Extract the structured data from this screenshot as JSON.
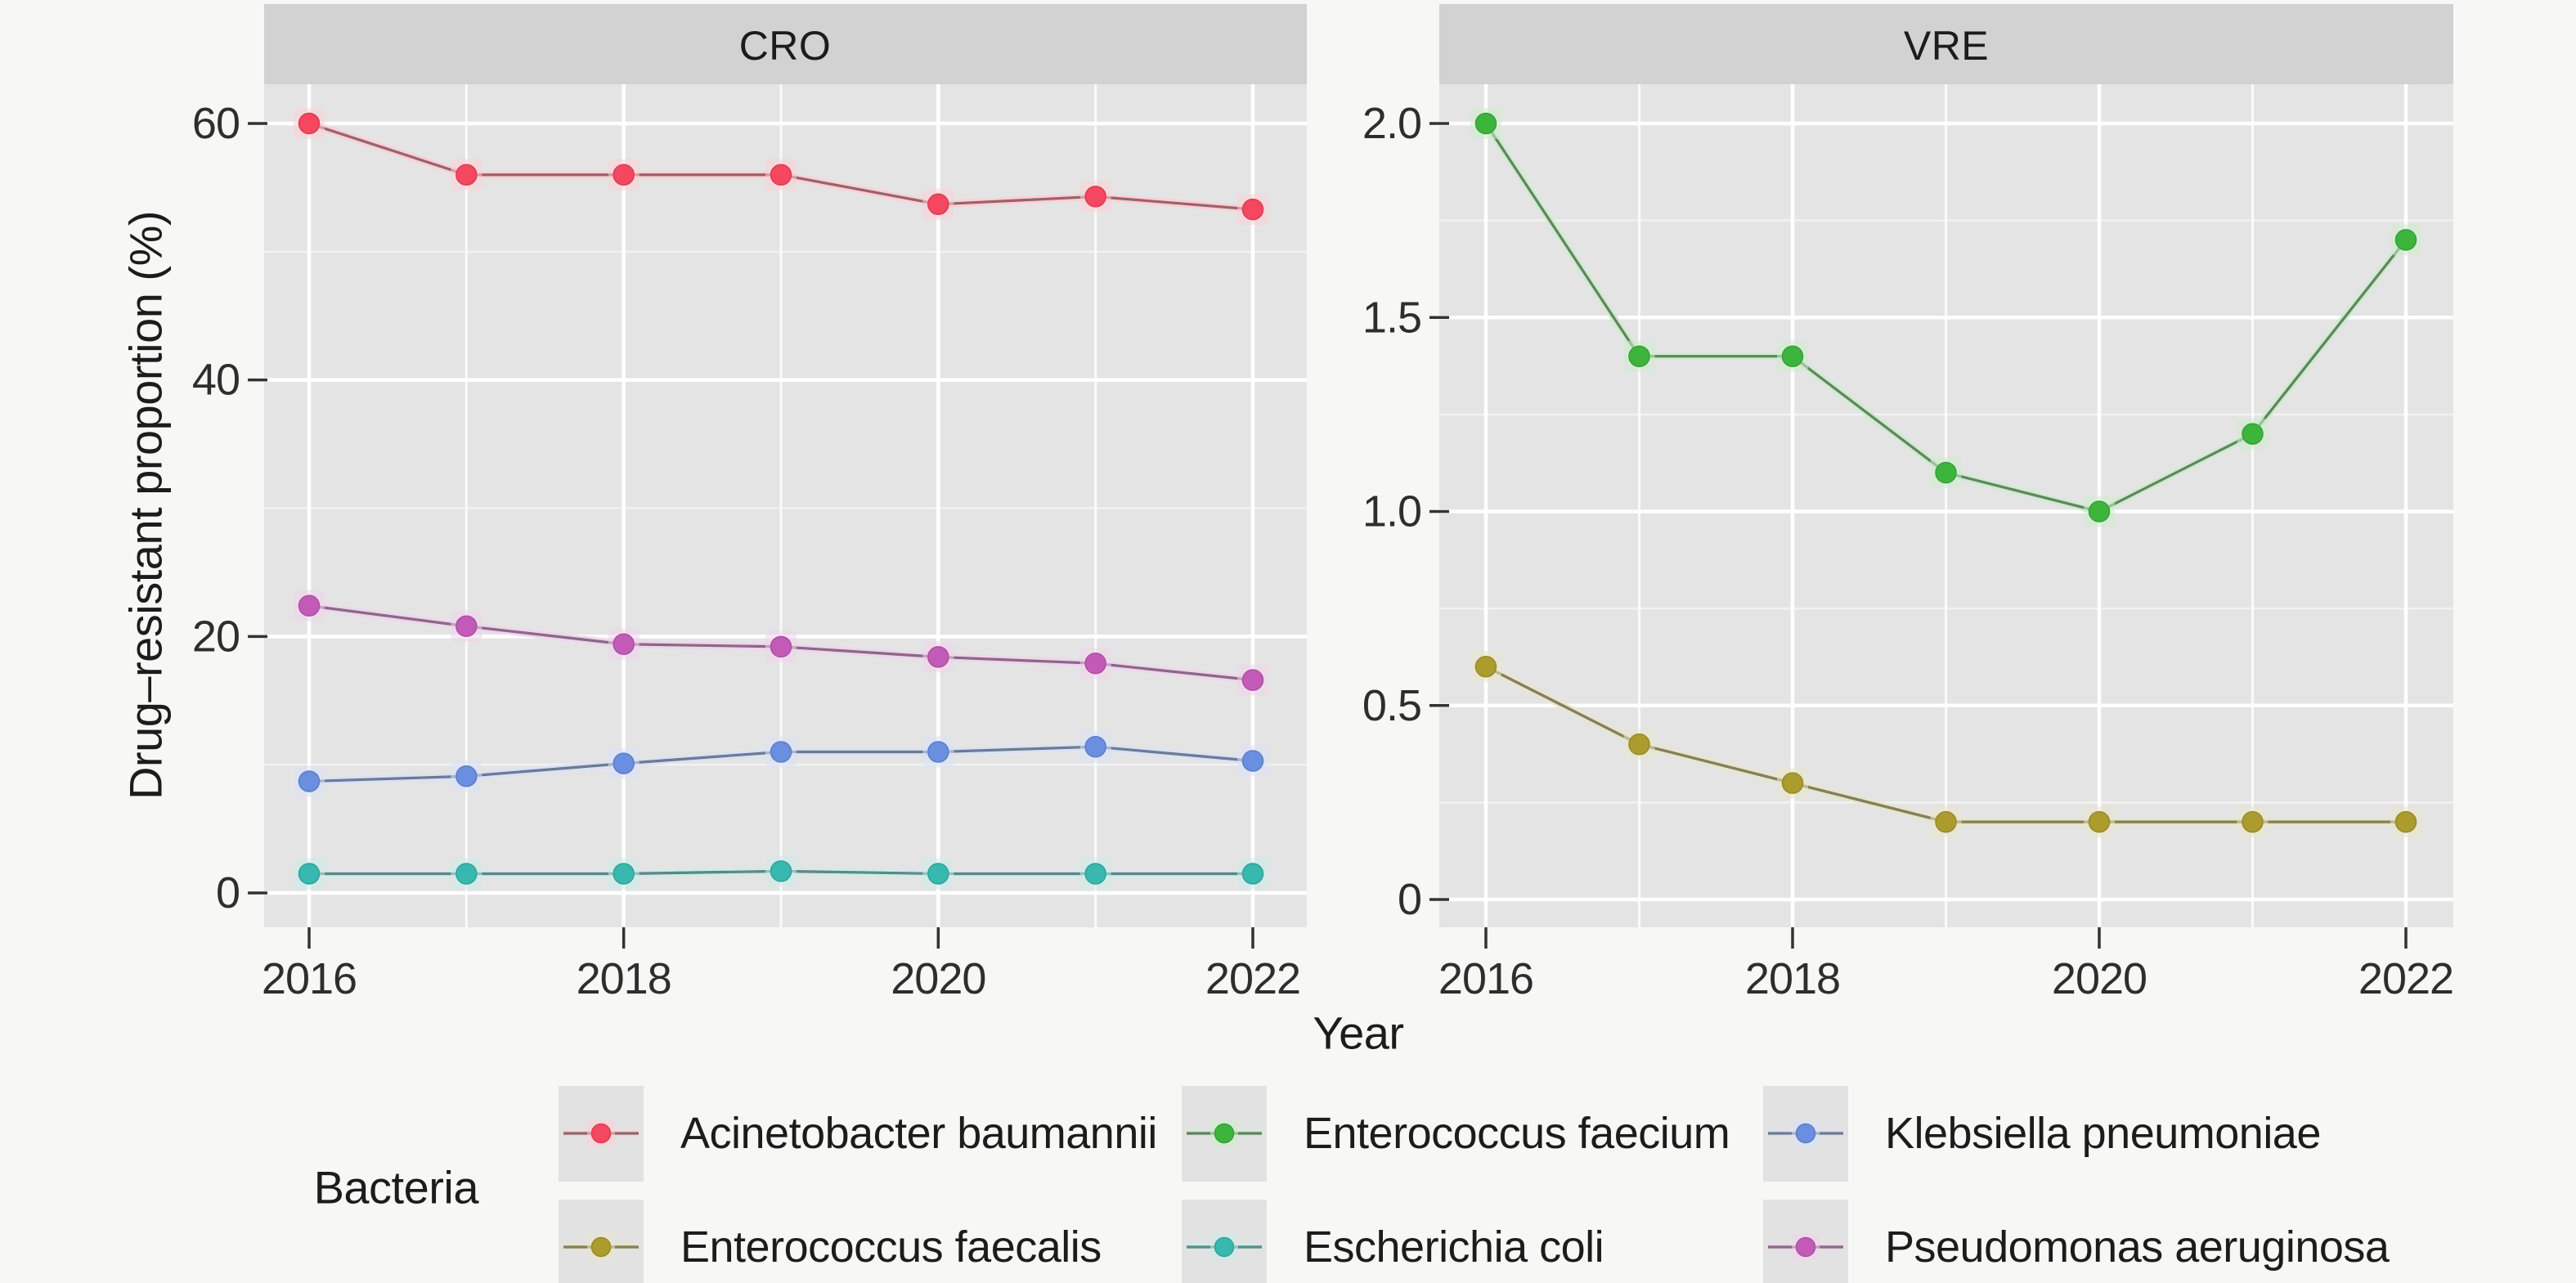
{
  "figure": {
    "xlabel": "Year",
    "ylabel": "Drug–resistant proportion (%)"
  },
  "legend": {
    "title": "Bacteria",
    "position": "bottom",
    "columns": [
      [
        "Acinetobacter baumannii",
        "Enterococcus faecalis"
      ],
      [
        "Enterococcus faecium",
        "Escherichia coli"
      ],
      [
        "Klebsiella pneumoniae",
        "Pseudomonas aeruginosa"
      ]
    ]
  },
  "chart_data": [
    {
      "type": "line",
      "title": "CRO",
      "xlabel": "Year",
      "ylabel": "Drug–resistant proportion (%)",
      "x": [
        2016,
        2017,
        2018,
        2019,
        2020,
        2021,
        2022
      ],
      "xticks": [
        2016,
        2018,
        2020,
        2022
      ],
      "xminor": [
        2017,
        2019,
        2021
      ],
      "ylim": [
        0,
        63
      ],
      "grid": true,
      "yticks": [
        {
          "v": 0,
          "label": "0"
        },
        {
          "v": 20,
          "label": "20"
        },
        {
          "v": 40,
          "label": "40"
        },
        {
          "v": 60,
          "label": "60"
        }
      ],
      "yminor": [
        10,
        30,
        50
      ],
      "series": [
        {
          "name": "Acinetobacter baumannii",
          "color": "#F5475F",
          "values": [
            60,
            56,
            56,
            56,
            53.7,
            54.3,
            53.3
          ]
        },
        {
          "name": "Escherichia coli",
          "color": "#38B8AE",
          "values": [
            1.5,
            1.5,
            1.5,
            1.7,
            1.5,
            1.5,
            1.5
          ]
        },
        {
          "name": "Klebsiella pneumoniae",
          "color": "#6A8EE0",
          "values": [
            8.7,
            9.1,
            10.1,
            11.0,
            11.0,
            11.4,
            10.3
          ]
        },
        {
          "name": "Pseudomonas aeruginosa",
          "color": "#C45AB8",
          "values": [
            22.4,
            20.8,
            19.4,
            19.2,
            18.4,
            17.9,
            16.6
          ]
        }
      ]
    },
    {
      "type": "line",
      "title": "VRE",
      "xlabel": "Year",
      "x": [
        2016,
        2017,
        2018,
        2019,
        2020,
        2021,
        2022
      ],
      "xticks": [
        2016,
        2018,
        2020,
        2022
      ],
      "xminor": [
        2017,
        2019,
        2021
      ],
      "ylim": [
        0,
        2.1
      ],
      "grid": true,
      "yticks": [
        {
          "v": 0,
          "label": "0"
        },
        {
          "v": 0.5,
          "label": "0.5"
        },
        {
          "v": 1,
          "label": "1.0"
        },
        {
          "v": 1.5,
          "label": "1.5"
        },
        {
          "v": 2,
          "label": "2.0"
        }
      ],
      "yminor": [
        0.25,
        0.75,
        1.25,
        1.75
      ],
      "series": [
        {
          "name": "Enterococcus faecalis",
          "color": "#AC9C2E",
          "values": [
            0.6,
            0.4,
            0.3,
            0.2,
            0.2,
            0.2,
            0.2
          ]
        },
        {
          "name": "Enterococcus faecium",
          "color": "#3DB53D",
          "values": [
            2.0,
            1.4,
            1.4,
            1.1,
            1.0,
            1.2,
            1.7
          ]
        }
      ]
    }
  ],
  "colors": {
    "panel_bg": "#E4E4E4",
    "strip_bg": "#D2D2D2",
    "page_bg": "#F7F7F6",
    "grid_major": "#FFFFFF",
    "grid_minor": "#F2F2F2",
    "line_gray": "#6E6E6E",
    "tick_mark": "#333333"
  }
}
